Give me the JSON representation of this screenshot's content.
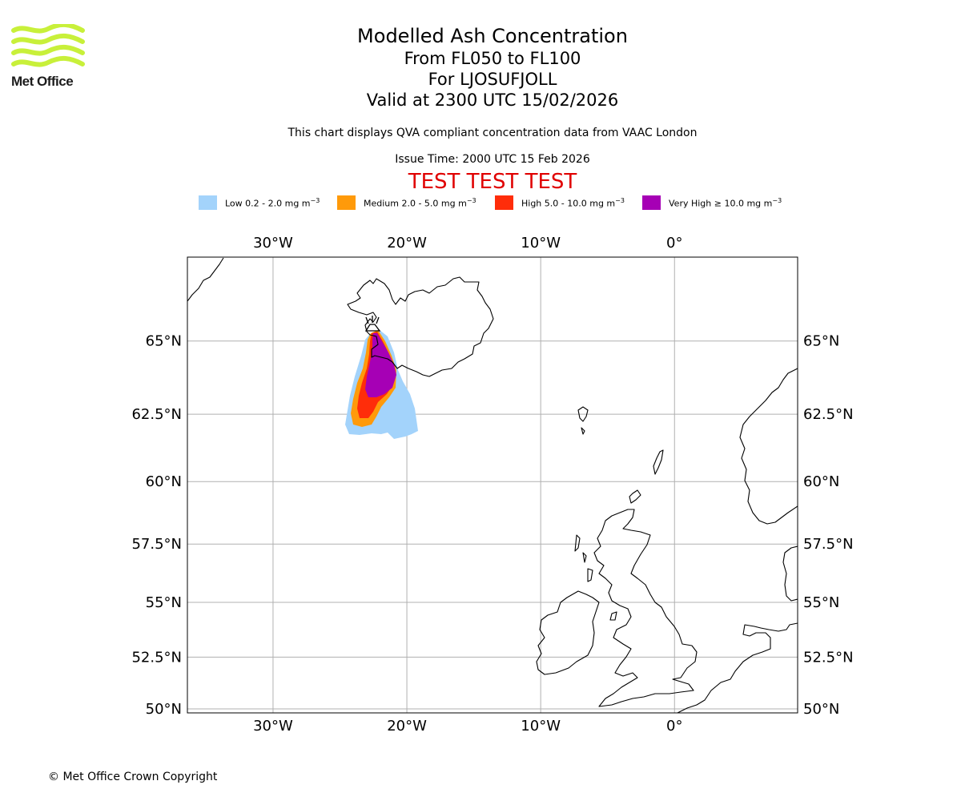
{
  "logo": {
    "text": "Met Office",
    "wave_color": "#c8f03a"
  },
  "title": {
    "line1": "Modelled Ash Concentration",
    "line2": "From FL050 to FL100",
    "line3": "For LJOSUFJOLL",
    "line4": "Valid at 2300 UTC 15/02/2026"
  },
  "subtitle": "This chart displays QVA compliant concentration data from VAAC London",
  "issue_time": "Issue Time: 2000 UTC 15 Feb 2026",
  "test_banner": "TEST TEST TEST",
  "legend": [
    {
      "label": "Low 0.2 - 2.0 mg m",
      "exp": "−3",
      "color": "#a3d3fb"
    },
    {
      "label": "Medium 2.0 - 5.0 mg m",
      "exp": "−3",
      "color": "#ff9a0a"
    },
    {
      "label": "High 5.0 - 10.0 mg m",
      "exp": "−3",
      "color": "#ff2d0a"
    },
    {
      "label": "Very High  ≥  10.0 mg m",
      "exp": "−3",
      "color": "#a600b5"
    }
  ],
  "map": {
    "lon_range": [
      -36.4,
      9.2
    ],
    "lat_range": [
      49.8,
      67.6
    ],
    "longitude_ticks": [
      {
        "value": -30,
        "label": "30°W"
      },
      {
        "value": -20,
        "label": "20°W"
      },
      {
        "value": -10,
        "label": "10°W"
      },
      {
        "value": 0,
        "label": "0°"
      }
    ],
    "latitude_ticks": [
      {
        "value": 65,
        "label": "65°N"
      },
      {
        "value": 62.5,
        "label": "62.5°N"
      },
      {
        "value": 60,
        "label": "60°N"
      },
      {
        "value": 57.5,
        "label": "57.5°N"
      },
      {
        "value": 55,
        "label": "55°N"
      },
      {
        "value": 52.5,
        "label": "52.5°N"
      },
      {
        "value": 50,
        "label": "50°N"
      }
    ]
  },
  "copyright": "© Met Office Crown Copyright"
}
